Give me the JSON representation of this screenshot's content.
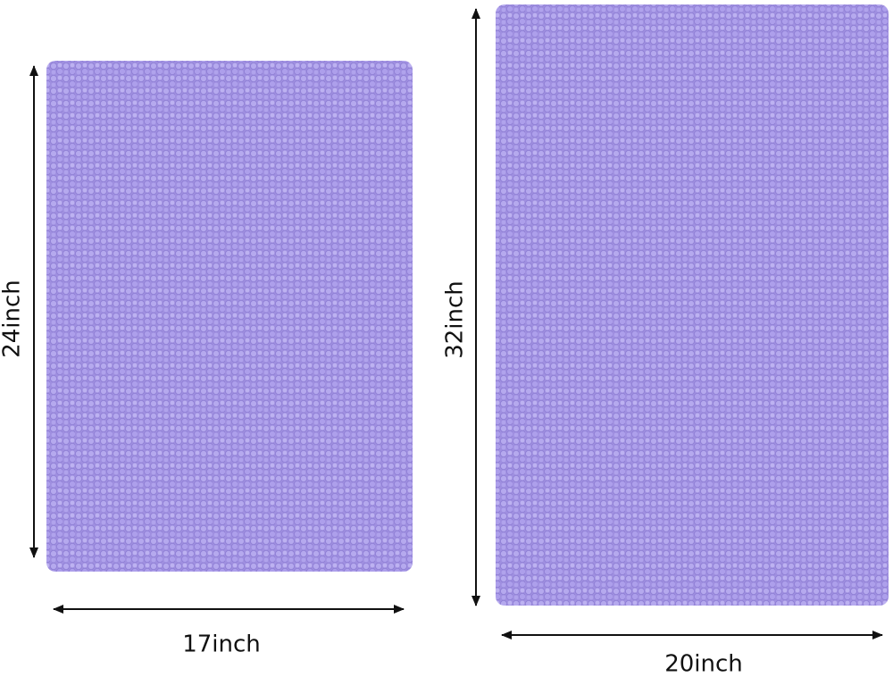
{
  "rugs": [
    {
      "height_label": "24inch",
      "width_label": "17inch"
    },
    {
      "height_label": "32inch",
      "width_label": "20inch"
    }
  ]
}
